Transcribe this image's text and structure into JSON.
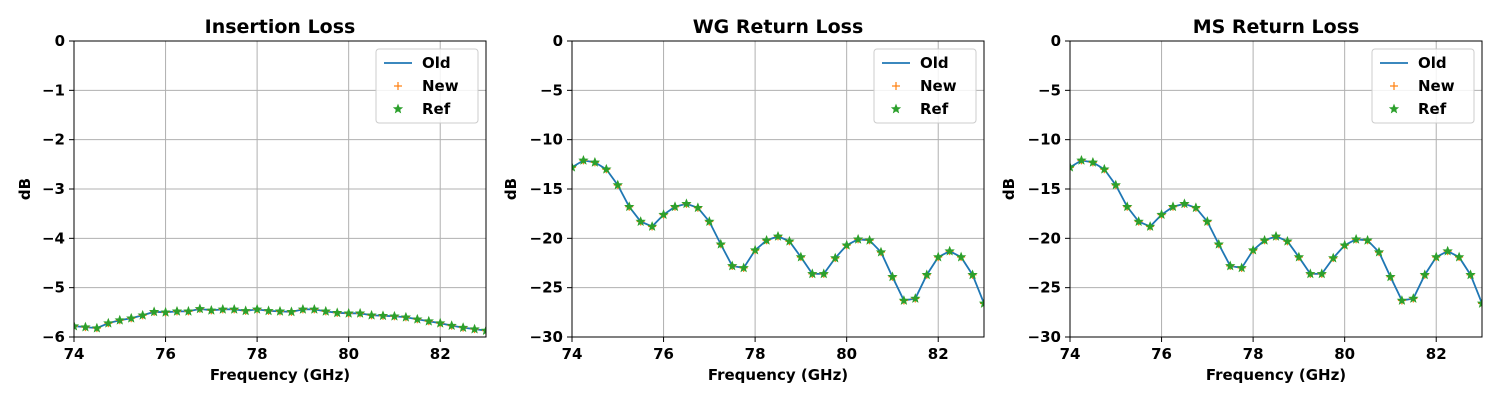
{
  "chart_data": [
    {
      "type": "line",
      "title": "Insertion Loss",
      "xlabel": "Frequency (GHz)",
      "ylabel": "dB",
      "xlim": [
        74,
        83
      ],
      "ylim": [
        -6,
        0
      ],
      "xticks": [
        74,
        76,
        78,
        80,
        82
      ],
      "yticks": [
        0,
        -1,
        -2,
        -3,
        -4,
        -5,
        -6
      ],
      "grid": true,
      "legend_position": "upper-right",
      "x": [
        74.0,
        74.25,
        74.5,
        74.75,
        75.0,
        75.25,
        75.5,
        75.75,
        76.0,
        76.25,
        76.5,
        76.75,
        77.0,
        77.25,
        77.5,
        77.75,
        78.0,
        78.25,
        78.5,
        78.75,
        79.0,
        79.25,
        79.5,
        79.75,
        80.0,
        80.25,
        80.5,
        80.75,
        81.0,
        81.25,
        81.5,
        81.75,
        82.0,
        82.25,
        82.5,
        82.75,
        83.0
      ],
      "series": [
        {
          "name": "Old",
          "marker": "line",
          "color": "#1f77b4",
          "values": [
            -5.78,
            -5.8,
            -5.82,
            -5.72,
            -5.66,
            -5.62,
            -5.56,
            -5.49,
            -5.5,
            -5.48,
            -5.48,
            -5.43,
            -5.46,
            -5.44,
            -5.44,
            -5.47,
            -5.44,
            -5.47,
            -5.48,
            -5.49,
            -5.44,
            -5.44,
            -5.48,
            -5.51,
            -5.52,
            -5.52,
            -5.56,
            -5.57,
            -5.58,
            -5.6,
            -5.64,
            -5.68,
            -5.72,
            -5.77,
            -5.81,
            -5.84,
            -5.87
          ]
        },
        {
          "name": "New",
          "marker": "+",
          "color": "#ff7f0e",
          "values": [
            -5.78,
            -5.8,
            -5.82,
            -5.72,
            -5.66,
            -5.62,
            -5.56,
            -5.49,
            -5.5,
            -5.48,
            -5.48,
            -5.43,
            -5.46,
            -5.44,
            -5.44,
            -5.47,
            -5.44,
            -5.47,
            -5.48,
            -5.49,
            -5.44,
            -5.44,
            -5.48,
            -5.51,
            -5.52,
            -5.52,
            -5.56,
            -5.57,
            -5.58,
            -5.6,
            -5.64,
            -5.68,
            -5.72,
            -5.77,
            -5.81,
            -5.84,
            -5.87
          ]
        },
        {
          "name": "Ref",
          "marker": "star",
          "color": "#2ca02c",
          "values": [
            -5.78,
            -5.8,
            -5.82,
            -5.72,
            -5.66,
            -5.62,
            -5.56,
            -5.49,
            -5.5,
            -5.48,
            -5.48,
            -5.43,
            -5.46,
            -5.44,
            -5.44,
            -5.47,
            -5.44,
            -5.47,
            -5.48,
            -5.49,
            -5.44,
            -5.44,
            -5.48,
            -5.51,
            -5.52,
            -5.52,
            -5.56,
            -5.57,
            -5.58,
            -5.6,
            -5.64,
            -5.68,
            -5.72,
            -5.77,
            -5.81,
            -5.84,
            -5.87
          ]
        }
      ]
    },
    {
      "type": "line",
      "title": "WG Return Loss",
      "xlabel": "Frequency (GHz)",
      "ylabel": "dB",
      "xlim": [
        74,
        83
      ],
      "ylim": [
        -30,
        0
      ],
      "xticks": [
        74,
        76,
        78,
        80,
        82
      ],
      "yticks": [
        0,
        -5,
        -10,
        -15,
        -20,
        -25,
        -30
      ],
      "grid": true,
      "legend_position": "upper-right",
      "x": [
        74.0,
        74.25,
        74.5,
        74.75,
        75.0,
        75.25,
        75.5,
        75.75,
        76.0,
        76.25,
        76.5,
        76.75,
        77.0,
        77.25,
        77.5,
        77.75,
        78.0,
        78.25,
        78.5,
        78.75,
        79.0,
        79.25,
        79.5,
        79.75,
        80.0,
        80.25,
        80.5,
        80.75,
        81.0,
        81.25,
        81.5,
        81.75,
        82.0,
        82.25,
        82.5,
        82.75,
        83.0
      ],
      "series": [
        {
          "name": "Old",
          "marker": "line",
          "color": "#1f77b4",
          "values": [
            -12.8,
            -12.1,
            -12.3,
            -13.0,
            -14.6,
            -16.8,
            -18.3,
            -18.8,
            -17.6,
            -16.8,
            -16.5,
            -16.9,
            -18.3,
            -20.6,
            -22.8,
            -23.0,
            -21.2,
            -20.2,
            -19.8,
            -20.3,
            -21.9,
            -23.6,
            -23.6,
            -22.0,
            -20.7,
            -20.1,
            -20.2,
            -21.4,
            -23.9,
            -26.3,
            -26.1,
            -23.7,
            -21.9,
            -21.3,
            -21.9,
            -23.7,
            -26.6
          ]
        },
        {
          "name": "New",
          "marker": "+",
          "color": "#ff7f0e",
          "values": [
            -12.8,
            -12.1,
            -12.3,
            -13.0,
            -14.6,
            -16.8,
            -18.3,
            -18.8,
            -17.6,
            -16.8,
            -16.5,
            -16.9,
            -18.3,
            -20.6,
            -22.8,
            -23.0,
            -21.2,
            -20.2,
            -19.8,
            -20.3,
            -21.9,
            -23.6,
            -23.6,
            -22.0,
            -20.7,
            -20.1,
            -20.2,
            -21.4,
            -23.9,
            -26.3,
            -26.1,
            -23.7,
            -21.9,
            -21.3,
            -21.9,
            -23.7,
            -26.6
          ]
        },
        {
          "name": "Ref",
          "marker": "star",
          "color": "#2ca02c",
          "values": [
            -12.8,
            -12.1,
            -12.3,
            -13.0,
            -14.6,
            -16.8,
            -18.3,
            -18.8,
            -17.6,
            -16.8,
            -16.5,
            -16.9,
            -18.3,
            -20.6,
            -22.8,
            -23.0,
            -21.2,
            -20.2,
            -19.8,
            -20.3,
            -21.9,
            -23.6,
            -23.6,
            -22.0,
            -20.7,
            -20.1,
            -20.2,
            -21.4,
            -23.9,
            -26.3,
            -26.1,
            -23.7,
            -21.9,
            -21.3,
            -21.9,
            -23.7,
            -26.6
          ]
        }
      ]
    },
    {
      "type": "line",
      "title": "MS Return Loss",
      "xlabel": "Frequency (GHz)",
      "ylabel": "dB",
      "xlim": [
        74,
        83
      ],
      "ylim": [
        -30,
        0
      ],
      "xticks": [
        74,
        76,
        78,
        80,
        82
      ],
      "yticks": [
        0,
        -5,
        -10,
        -15,
        -20,
        -25,
        -30
      ],
      "grid": true,
      "legend_position": "upper-right",
      "x": [
        74.0,
        74.25,
        74.5,
        74.75,
        75.0,
        75.25,
        75.5,
        75.75,
        76.0,
        76.25,
        76.5,
        76.75,
        77.0,
        77.25,
        77.5,
        77.75,
        78.0,
        78.25,
        78.5,
        78.75,
        79.0,
        79.25,
        79.5,
        79.75,
        80.0,
        80.25,
        80.5,
        80.75,
        81.0,
        81.25,
        81.5,
        81.75,
        82.0,
        82.25,
        82.5,
        82.75,
        83.0
      ],
      "series": [
        {
          "name": "Old",
          "marker": "line",
          "color": "#1f77b4",
          "values": [
            -12.8,
            -12.1,
            -12.3,
            -13.0,
            -14.6,
            -16.8,
            -18.3,
            -18.8,
            -17.6,
            -16.8,
            -16.5,
            -16.9,
            -18.3,
            -20.6,
            -22.8,
            -23.0,
            -21.2,
            -20.2,
            -19.8,
            -20.3,
            -21.9,
            -23.6,
            -23.6,
            -22.0,
            -20.7,
            -20.1,
            -20.2,
            -21.4,
            -23.9,
            -26.3,
            -26.1,
            -23.7,
            -21.9,
            -21.3,
            -21.9,
            -23.7,
            -26.6
          ]
        },
        {
          "name": "New",
          "marker": "+",
          "color": "#ff7f0e",
          "values": [
            -12.8,
            -12.1,
            -12.3,
            -13.0,
            -14.6,
            -16.8,
            -18.3,
            -18.8,
            -17.6,
            -16.8,
            -16.5,
            -16.9,
            -18.3,
            -20.6,
            -22.8,
            -23.0,
            -21.2,
            -20.2,
            -19.8,
            -20.3,
            -21.9,
            -23.6,
            -23.6,
            -22.0,
            -20.7,
            -20.1,
            -20.2,
            -21.4,
            -23.9,
            -26.3,
            -26.1,
            -23.7,
            -21.9,
            -21.3,
            -21.9,
            -23.7,
            -26.6
          ]
        },
        {
          "name": "Ref",
          "marker": "star",
          "color": "#2ca02c",
          "values": [
            -12.8,
            -12.1,
            -12.3,
            -13.0,
            -14.6,
            -16.8,
            -18.3,
            -18.8,
            -17.6,
            -16.8,
            -16.5,
            -16.9,
            -18.3,
            -20.6,
            -22.8,
            -23.0,
            -21.2,
            -20.2,
            -19.8,
            -20.3,
            -21.9,
            -23.6,
            -23.6,
            -22.0,
            -20.7,
            -20.1,
            -20.2,
            -21.4,
            -23.9,
            -26.3,
            -26.1,
            -23.7,
            -21.9,
            -21.3,
            -21.9,
            -23.7,
            -26.6
          ]
        }
      ]
    }
  ]
}
